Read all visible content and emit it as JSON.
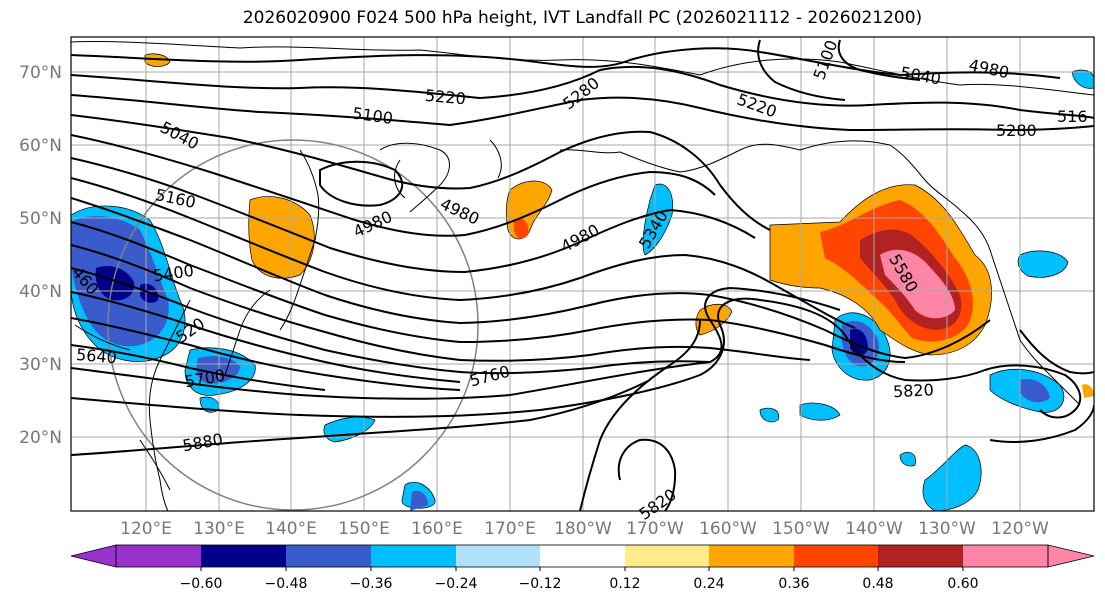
{
  "title": "2026020900 F024 500 hPa height, IVT Landfall PC (2026021112 - 2026021200)",
  "lat_labels": [
    "70°N",
    "60°N",
    "50°N",
    "40°N",
    "30°N",
    "20°N"
  ],
  "lon_labels": [
    "120°E",
    "130°E",
    "140°E",
    "150°E",
    "160°E",
    "170°E",
    "180°W",
    "170°W",
    "160°W",
    "150°W",
    "140°W",
    "130°W",
    "120°W"
  ],
  "contour_labels": [
    "5100",
    "5220",
    "5280",
    "5040",
    "4980",
    "5220",
    "5280",
    "516",
    "5100",
    "5040",
    "5160",
    "4980",
    "4980",
    "4980",
    "5340",
    "460",
    "5400",
    "520",
    "5580",
    "5640",
    "5700",
    "5760",
    "5820",
    "5880",
    "5820"
  ],
  "colorbar": {
    "ticks": [
      "−0.60",
      "−0.48",
      "−0.36",
      "−0.24",
      "−0.12",
      "0.12",
      "0.24",
      "0.36",
      "0.48",
      "0.60"
    ],
    "colors": [
      "#9932CC",
      "#00008B",
      "#3A5BCC",
      "#00BFFF",
      "#B0E2FF",
      "#FFFFFF",
      "#FFEB8A",
      "#FFA500",
      "#FF4500",
      "#B22222",
      "#FF85A7"
    ]
  },
  "colors": {
    "contour": "#000000",
    "grid": "#a9a9a9",
    "circle": "#808080",
    "coast": "#000000"
  }
}
